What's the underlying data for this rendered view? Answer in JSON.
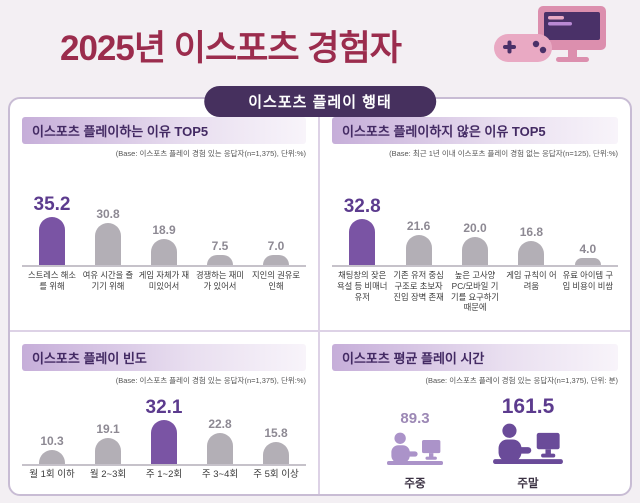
{
  "header": {
    "title": "2025년 이스포츠 경험자",
    "banner": "이스포츠 플레이 행태"
  },
  "colors": {
    "page_bg": "#f3eff3",
    "title_red": "#9b2c4d",
    "banner_bg": "#46305e",
    "highlight_purple": "#7a54a4",
    "highlight_text": "#5c3b8e",
    "gray_bar": "#b3afb6"
  },
  "chart_data": [
    {
      "type": "bar",
      "title": "이스포츠 플레이하는 이유 TOP5",
      "base_note": "(Base: 이스포츠 플레이 경험 있는 응답자(n=1,375), 단위:%)",
      "categories": [
        "스트레스 해소를 위해",
        "여유 시간을 즐기기 위해",
        "게임 자체가 재미있어서",
        "경쟁하는 재미가 있어서",
        "지인의 권유로 인해"
      ],
      "values": [
        35.2,
        30.8,
        18.9,
        7.5,
        7.0
      ],
      "value_labels": [
        "35.2",
        "30.8",
        "18.9",
        "7.5",
        "7.0"
      ],
      "highlight_index": 0,
      "unit": "%"
    },
    {
      "type": "bar",
      "title": "이스포츠 플레이하지 않은 이유 TOP5",
      "base_note": "(Base: 최근 1년 이내 이스포츠 플레이 경험 없는 응답자(n=125), 단위:%)",
      "categories": [
        "채팅창의 잦은 욕설 등 비매너 유저",
        "기존 유저 중심 구조로 초보자 진입 장벽 존재",
        "높은 고사양 PC/모바일 기기를 요구하기 때문에",
        "게임 규칙이 어려움",
        "유료 아이템 구입 비용이 비쌈"
      ],
      "values": [
        32.8,
        21.6,
        20.0,
        16.8,
        4.0
      ],
      "value_labels": [
        "32.8",
        "21.6",
        "20.0",
        "16.8",
        "4.0"
      ],
      "highlight_index": 0,
      "unit": "%"
    },
    {
      "type": "bar",
      "title": "이스포츠 플레이 빈도",
      "base_note": "(Base: 이스포츠 플레이 경험 있는 응답자(n=1,375), 단위:%)",
      "categories": [
        "월 1회 이하",
        "월 2~3회",
        "주 1~2회",
        "주 3~4회",
        "주 5회 이상"
      ],
      "values": [
        10.3,
        19.1,
        32.1,
        22.8,
        15.8
      ],
      "value_labels": [
        "10.3",
        "19.1",
        "32.1",
        "22.8",
        "15.8"
      ],
      "highlight_index": 2,
      "unit": "%"
    },
    {
      "type": "pictogram",
      "title": "이스포츠 평균 플레이 시간",
      "base_note": "(Base: 이스포츠 플레이 경험 있는 응답자(n=1,375), 단위: 분)",
      "categories": [
        "주중",
        "주말"
      ],
      "values": [
        89.3,
        161.5
      ],
      "value_labels": [
        "89.3",
        "161.5"
      ],
      "highlight_index": 1,
      "unit": "분"
    }
  ]
}
